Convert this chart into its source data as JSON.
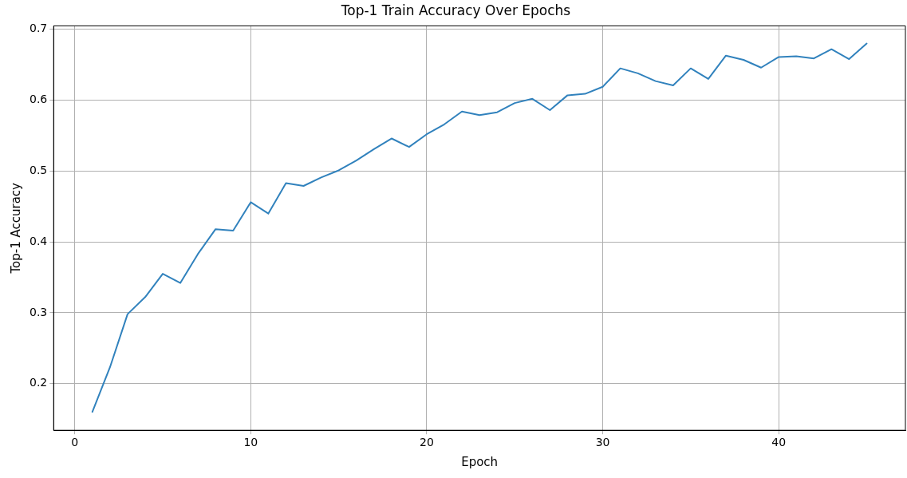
{
  "chart_data": {
    "type": "line",
    "title": "Top-1 Train Accuracy Over Epochs",
    "xlabel": "Epoch",
    "ylabel": "Top-1 Accuracy",
    "x": [
      1,
      2,
      3,
      4,
      5,
      6,
      7,
      8,
      9,
      10,
      11,
      12,
      13,
      14,
      15,
      16,
      17,
      18,
      19,
      20,
      21,
      22,
      23,
      24,
      25,
      26,
      27,
      28,
      29,
      30,
      31,
      32,
      33,
      34,
      35,
      36,
      37,
      38,
      39,
      40,
      41,
      42,
      43,
      44,
      45
    ],
    "series": [
      {
        "color": "#3182bd",
        "values": [
          0.16,
          0.223,
          0.298,
          0.322,
          0.355,
          0.342,
          0.383,
          0.418,
          0.416,
          0.456,
          0.44,
          0.483,
          0.479,
          0.491,
          0.501,
          0.515,
          0.531,
          0.546,
          0.534,
          0.552,
          0.566,
          0.584,
          0.579,
          0.583,
          0.596,
          0.602,
          0.586,
          0.607,
          0.609,
          0.619,
          0.645,
          0.638,
          0.627,
          0.621,
          0.645,
          0.63,
          0.663,
          0.657,
          0.646,
          0.661,
          0.662,
          0.659,
          0.672,
          0.658,
          0.68
        ]
      }
    ],
    "xlim": [
      -1.2,
      47.2
    ],
    "ylim": [
      0.134,
      0.705
    ],
    "xticks": [
      0,
      10,
      20,
      30,
      40
    ],
    "yticks": [
      0.2,
      0.3,
      0.4,
      0.5,
      0.6,
      0.7
    ],
    "grid": true,
    "marker": "none",
    "line_style": "solid"
  }
}
